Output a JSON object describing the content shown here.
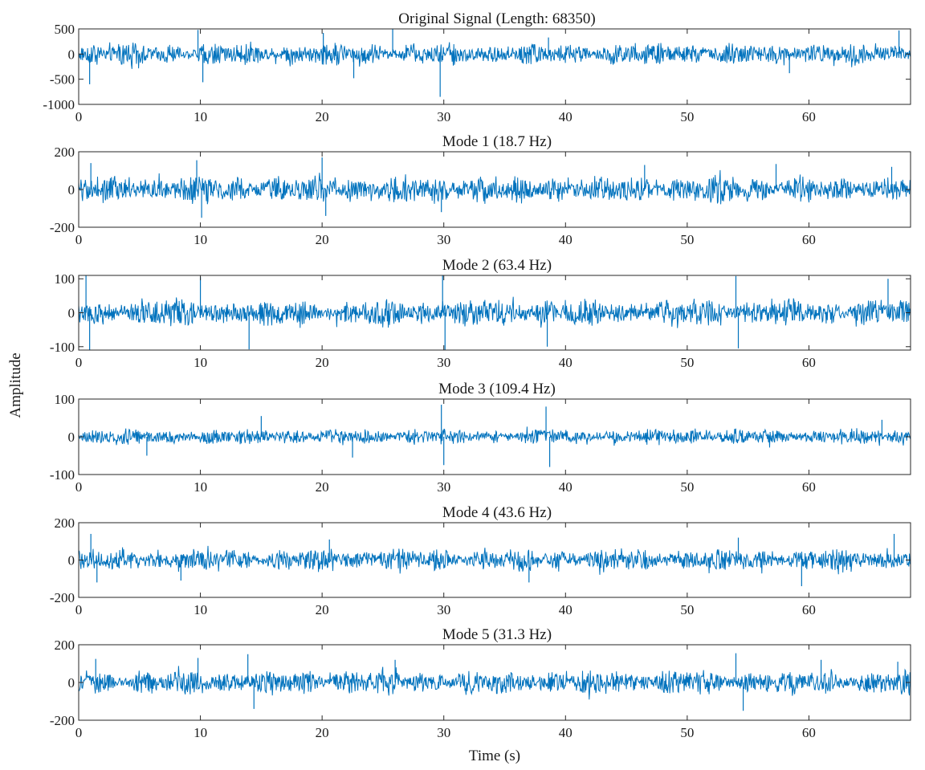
{
  "figure": {
    "ylabel": "Amplitude",
    "xlabel": "Time (s)",
    "signal_color": "#0072BD"
  },
  "chart_data": [
    {
      "type": "line",
      "title": "Original Signal (Length: 68350)",
      "xlim": [
        0,
        68.35
      ],
      "ylim": [
        -1000,
        500
      ],
      "x_ticks": [
        "0",
        "10",
        "20",
        "30",
        "40",
        "50",
        "60"
      ],
      "y_ticks": [
        "500",
        "0",
        "-500",
        "-1000"
      ],
      "grid": false,
      "series": [
        {
          "values_summary": "dense vibration signal centered at 0, typical range about -350 to 350, peaks near 500 at t≈10 and t≈26, dip to about -850 at t≈29.7"
        }
      ]
    },
    {
      "type": "line",
      "title": "Mode 1 (18.7 Hz)",
      "xlim": [
        0,
        68.35
      ],
      "ylim": [
        -200,
        200
      ],
      "x_ticks": [
        "0",
        "10",
        "20",
        "30",
        "40",
        "50",
        "60"
      ],
      "y_ticks": [
        "200",
        "0",
        "-200"
      ],
      "grid": false,
      "series": [
        {
          "values_summary": "dense oscillation centered at 0, typical range about -100 to 100, peaks near 160 at t≈10 and t≈20"
        }
      ]
    },
    {
      "type": "line",
      "title": "Mode 2 (63.4 Hz)",
      "xlim": [
        0,
        68.35
      ],
      "ylim": [
        -110,
        110
      ],
      "x_ticks": [
        "0",
        "10",
        "20",
        "30",
        "40",
        "50",
        "60"
      ],
      "y_ticks": [
        "100",
        "0",
        "-100"
      ],
      "grid": false,
      "series": [
        {
          "values_summary": "dense oscillation centered at 0, typical range about -60 to 60, spikes to about ±110 at t≈0.5, 10, 14, 30, 38.5, 54"
        }
      ]
    },
    {
      "type": "line",
      "title": "Mode 3 (109.4 Hz)",
      "xlim": [
        0,
        68.35
      ],
      "ylim": [
        -100,
        100
      ],
      "x_ticks": [
        "0",
        "10",
        "20",
        "30",
        "40",
        "50",
        "60"
      ],
      "y_ticks": [
        "100",
        "0",
        "-100"
      ],
      "grid": false,
      "series": [
        {
          "values_summary": "dense oscillation centered at 0, typical range about -30 to 30, spikes near 80 at t≈30 and t≈38.5"
        }
      ]
    },
    {
      "type": "line",
      "title": "Mode 4 (43.6 Hz)",
      "xlim": [
        0,
        68.35
      ],
      "ylim": [
        -200,
        200
      ],
      "x_ticks": [
        "0",
        "10",
        "20",
        "30",
        "40",
        "50",
        "60"
      ],
      "y_ticks": [
        "200",
        "0",
        "-200"
      ],
      "grid": false,
      "series": [
        {
          "values_summary": "dense oscillation centered at 0, typical range about -90 to 90, peaks near 140 at t≈1 and t≈67"
        }
      ]
    },
    {
      "type": "line",
      "title": "Mode 5 (31.3 Hz)",
      "xlim": [
        0,
        68.35
      ],
      "ylim": [
        -200,
        200
      ],
      "x_ticks": [
        "0",
        "10",
        "20",
        "30",
        "40",
        "50",
        "60"
      ],
      "y_ticks": [
        "200",
        "0",
        "-200"
      ],
      "grid": false,
      "series": [
        {
          "values_summary": "dense oscillation centered at 0, typical range about -100 to 100, peaks near 150 at t≈14 and t≈54"
        }
      ]
    }
  ]
}
